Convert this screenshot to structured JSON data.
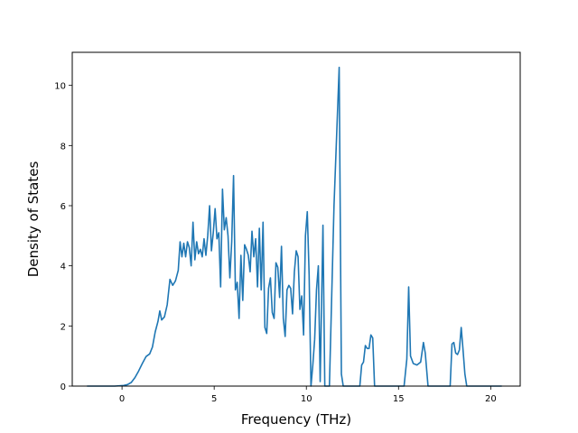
{
  "chart_data": {
    "type": "line",
    "title": "",
    "xlabel": "Frequency (THz)",
    "ylabel": "Density of States",
    "xlim": [
      -2.7,
      21.6
    ],
    "ylim": [
      0,
      11.1
    ],
    "x_ticks": [
      0,
      5,
      10,
      15,
      20
    ],
    "y_ticks": [
      0,
      2,
      4,
      6,
      8,
      10
    ],
    "grid": false,
    "series": [
      {
        "color": "#1f77b4",
        "points": [
          [
            -1.9,
            0
          ],
          [
            -0.4,
            0
          ],
          [
            0.1,
            0.02
          ],
          [
            0.3,
            0.05
          ],
          [
            0.5,
            0.12
          ],
          [
            0.7,
            0.28
          ],
          [
            0.9,
            0.5
          ],
          [
            1.1,
            0.75
          ],
          [
            1.3,
            0.98
          ],
          [
            1.5,
            1.07
          ],
          [
            1.65,
            1.3
          ],
          [
            1.8,
            1.8
          ],
          [
            1.95,
            2.15
          ],
          [
            2.05,
            2.5
          ],
          [
            2.15,
            2.2
          ],
          [
            2.3,
            2.3
          ],
          [
            2.45,
            2.7
          ],
          [
            2.6,
            3.55
          ],
          [
            2.75,
            3.35
          ],
          [
            2.9,
            3.5
          ],
          [
            3.05,
            3.85
          ],
          [
            3.15,
            4.8
          ],
          [
            3.25,
            4.3
          ],
          [
            3.35,
            4.75
          ],
          [
            3.45,
            4.3
          ],
          [
            3.55,
            4.8
          ],
          [
            3.65,
            4.6
          ],
          [
            3.75,
            4.0
          ],
          [
            3.85,
            5.45
          ],
          [
            3.95,
            4.2
          ],
          [
            4.05,
            4.8
          ],
          [
            4.15,
            4.4
          ],
          [
            4.25,
            4.55
          ],
          [
            4.35,
            4.3
          ],
          [
            4.45,
            4.9
          ],
          [
            4.55,
            4.35
          ],
          [
            4.65,
            5.0
          ],
          [
            4.75,
            6.0
          ],
          [
            4.85,
            4.5
          ],
          [
            4.95,
            5.1
          ],
          [
            5.05,
            5.9
          ],
          [
            5.15,
            4.9
          ],
          [
            5.25,
            5.1
          ],
          [
            5.35,
            3.3
          ],
          [
            5.45,
            6.55
          ],
          [
            5.55,
            5.2
          ],
          [
            5.65,
            5.6
          ],
          [
            5.75,
            5.0
          ],
          [
            5.85,
            3.6
          ],
          [
            5.95,
            4.8
          ],
          [
            6.05,
            7.0
          ],
          [
            6.15,
            3.2
          ],
          [
            6.25,
            3.45
          ],
          [
            6.35,
            2.25
          ],
          [
            6.45,
            4.35
          ],
          [
            6.55,
            2.85
          ],
          [
            6.65,
            4.7
          ],
          [
            6.75,
            4.55
          ],
          [
            6.85,
            4.35
          ],
          [
            6.95,
            3.8
          ],
          [
            7.05,
            5.15
          ],
          [
            7.15,
            4.3
          ],
          [
            7.25,
            4.9
          ],
          [
            7.35,
            3.3
          ],
          [
            7.45,
            5.25
          ],
          [
            7.55,
            3.2
          ],
          [
            7.65,
            5.45
          ],
          [
            7.75,
            1.95
          ],
          [
            7.85,
            1.75
          ],
          [
            7.95,
            3.25
          ],
          [
            8.05,
            3.6
          ],
          [
            8.15,
            2.45
          ],
          [
            8.25,
            2.25
          ],
          [
            8.35,
            4.1
          ],
          [
            8.45,
            3.95
          ],
          [
            8.55,
            2.95
          ],
          [
            8.65,
            4.65
          ],
          [
            8.75,
            2.25
          ],
          [
            8.85,
            1.65
          ],
          [
            8.95,
            3.2
          ],
          [
            9.05,
            3.35
          ],
          [
            9.15,
            3.25
          ],
          [
            9.25,
            2.4
          ],
          [
            9.35,
            3.8
          ],
          [
            9.45,
            4.5
          ],
          [
            9.55,
            4.3
          ],
          [
            9.65,
            2.55
          ],
          [
            9.75,
            3.0
          ],
          [
            9.85,
            1.7
          ],
          [
            9.95,
            5.0
          ],
          [
            10.05,
            5.8
          ],
          [
            10.15,
            3.7
          ],
          [
            10.25,
            0.0
          ],
          [
            10.35,
            0.7
          ],
          [
            10.45,
            1.55
          ],
          [
            10.55,
            3.2
          ],
          [
            10.65,
            4.0
          ],
          [
            10.75,
            0.15
          ],
          [
            10.9,
            5.35
          ],
          [
            11.0,
            0
          ],
          [
            11.25,
            0
          ],
          [
            11.5,
            6.0
          ],
          [
            11.78,
            10.6
          ],
          [
            11.9,
            0.4
          ],
          [
            12.0,
            0
          ],
          [
            12.9,
            0
          ],
          [
            13.0,
            0.7
          ],
          [
            13.1,
            0.8
          ],
          [
            13.2,
            1.35
          ],
          [
            13.3,
            1.25
          ],
          [
            13.4,
            1.25
          ],
          [
            13.5,
            1.7
          ],
          [
            13.6,
            1.6
          ],
          [
            13.7,
            0
          ],
          [
            15.3,
            0
          ],
          [
            15.45,
            0.9
          ],
          [
            15.55,
            3.3
          ],
          [
            15.65,
            1.0
          ],
          [
            15.8,
            0.75
          ],
          [
            16.0,
            0.7
          ],
          [
            16.2,
            0.8
          ],
          [
            16.35,
            1.45
          ],
          [
            16.45,
            1.1
          ],
          [
            16.6,
            0
          ],
          [
            17.8,
            0
          ],
          [
            17.9,
            1.4
          ],
          [
            18.0,
            1.45
          ],
          [
            18.1,
            1.1
          ],
          [
            18.2,
            1.05
          ],
          [
            18.3,
            1.2
          ],
          [
            18.4,
            1.95
          ],
          [
            18.5,
            1.2
          ],
          [
            18.6,
            0.4
          ],
          [
            18.7,
            0
          ],
          [
            20.6,
            0
          ]
        ]
      }
    ]
  }
}
